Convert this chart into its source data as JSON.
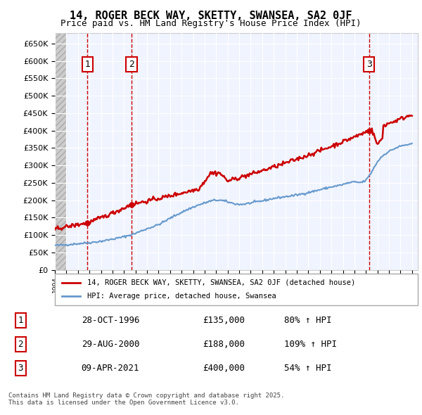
{
  "title": "14, ROGER BECK WAY, SKETTY, SWANSEA, SA2 0JF",
  "subtitle": "Price paid vs. HM Land Registry's House Price Index (HPI)",
  "ylabel": "",
  "ylim": [
    0,
    680000
  ],
  "yticks": [
    0,
    50000,
    100000,
    150000,
    200000,
    250000,
    300000,
    350000,
    400000,
    450000,
    500000,
    550000,
    600000,
    650000
  ],
  "xlim_start": 1994.0,
  "xlim_end": 2025.5,
  "sales": [
    {
      "date": 1996.83,
      "price": 135000,
      "label": "1"
    },
    {
      "date": 2000.66,
      "price": 188000,
      "label": "2"
    },
    {
      "date": 2021.27,
      "price": 400000,
      "label": "3"
    }
  ],
  "vlines": [
    1996.83,
    2000.66,
    2021.27
  ],
  "legend_line1": "14, ROGER BECK WAY, SKETTY, SWANSEA, SA2 0JF (detached house)",
  "legend_line2": "HPI: Average price, detached house, Swansea",
  "table": [
    {
      "num": "1",
      "date": "28-OCT-1996",
      "price": "£135,000",
      "pct": "80% ↑ HPI"
    },
    {
      "num": "2",
      "date": "29-AUG-2000",
      "price": "£188,000",
      "pct": "109% ↑ HPI"
    },
    {
      "num": "3",
      "date": "09-APR-2021",
      "price": "£400,000",
      "pct": "54% ↑ HPI"
    }
  ],
  "footnote": "Contains HM Land Registry data © Crown copyright and database right 2025.\nThis data is licensed under the Open Government Licence v3.0.",
  "hpi_color": "#6699cc",
  "price_color": "#cc0000",
  "vline_color": "#cc0000",
  "box_bg": "#ddeeff",
  "hatch_bg": "#e8e8e8"
}
